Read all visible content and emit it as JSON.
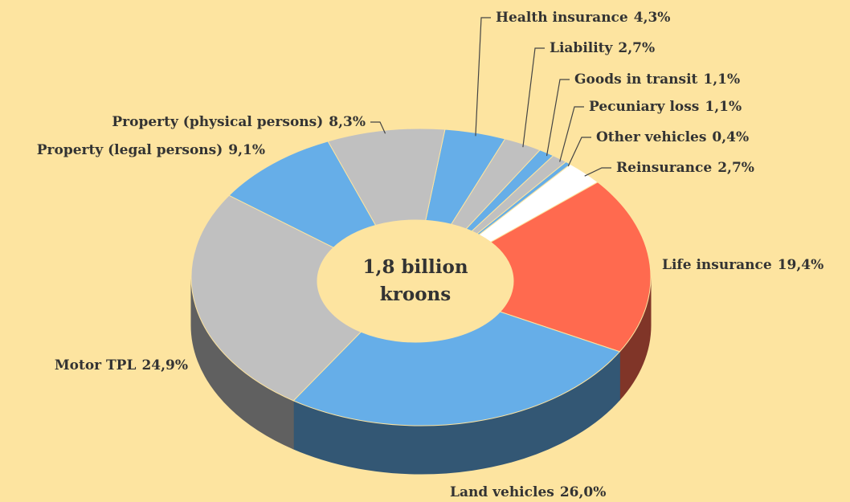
{
  "chart_data": {
    "type": "pie",
    "categories": [
      "Health insurance",
      "Liability",
      "Goods in transit",
      "Pecuniary loss",
      "Other vehicles",
      "Reinsurance",
      "Life insurance",
      "Land vehicles",
      "Motor TPL",
      "Property (legal persons)",
      "Property (physical persons)"
    ],
    "values": [
      4.3,
      2.7,
      1.1,
      1.1,
      0.4,
      2.7,
      19.4,
      26.0,
      24.9,
      9.1,
      8.3
    ],
    "value_labels": [
      "4,3%",
      "2,7%",
      "1,1%",
      "1,1%",
      "0,4%",
      "2,7%",
      "19,4%",
      "26,0%",
      "24,9%",
      "9,1%",
      "8,3%"
    ],
    "colors": [
      "#66aee8",
      "#c0c0c0",
      "#66aee8",
      "#c0c0c0",
      "#66aee8",
      "#ffffff",
      "#ff6a4f",
      "#66aee8",
      "#c0c0c0",
      "#66aee8",
      "#c0c0c0"
    ],
    "center_label": [
      "1,8 billion",
      "kroons"
    ]
  }
}
